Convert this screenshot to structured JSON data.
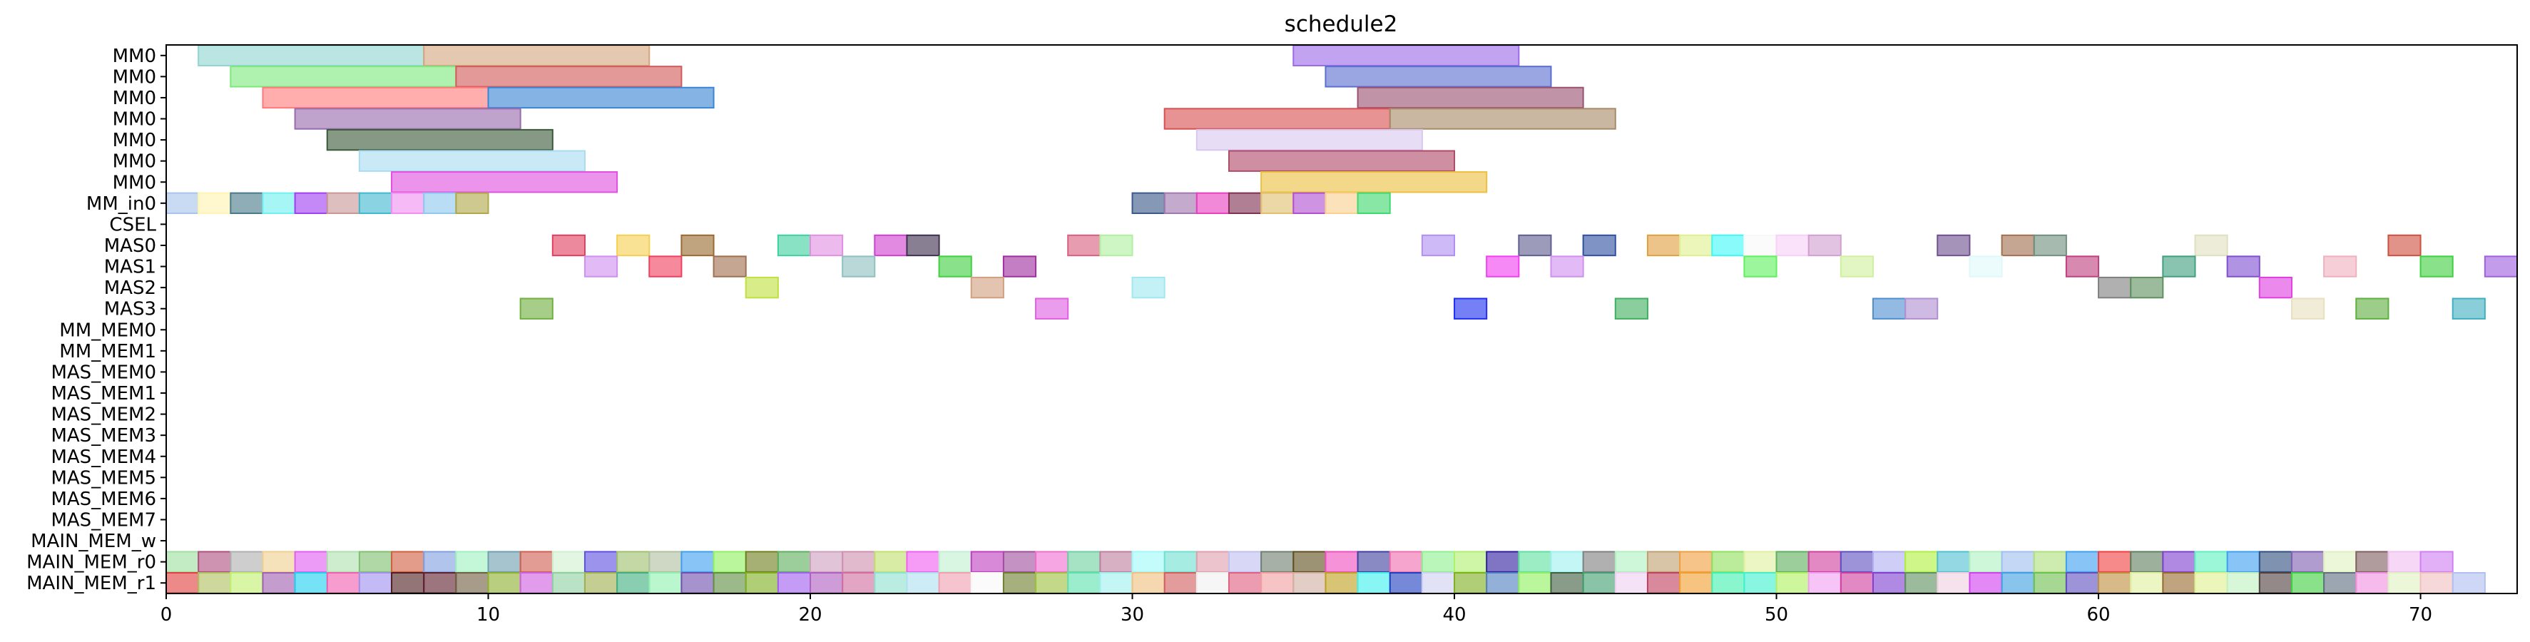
{
  "chart_data": {
    "type": "gantt",
    "title": "schedule2",
    "xlabel": "",
    "ylabel": "",
    "xlim": [
      0,
      73
    ],
    "xticks": [
      0,
      10,
      20,
      30,
      40,
      50,
      60,
      70
    ],
    "grid": false,
    "rows": [
      "MM0",
      "MM0",
      "MM0",
      "MM0",
      "MM0",
      "MM0",
      "MM0",
      "MM_in0",
      "CSEL",
      "MAS0",
      "MAS1",
      "MAS2",
      "MAS3",
      "MM_MEM0",
      "MM_MEM1",
      "MAS_MEM0",
      "MAS_MEM1",
      "MAS_MEM2",
      "MAS_MEM3",
      "MAS_MEM4",
      "MAS_MEM5",
      "MAS_MEM6",
      "MAS_MEM7",
      "MAIN_MEM_w",
      "MAIN_MEM_r0",
      "MAIN_MEM_r1"
    ],
    "bars": [
      [
        0,
        1,
        8,
        "#8fd5d0"
      ],
      [
        0,
        8,
        15,
        "#d4a67e"
      ],
      [
        0,
        35,
        42,
        "#9b6be8"
      ],
      [
        1,
        2,
        9,
        "#7ee87e"
      ],
      [
        1,
        9,
        16,
        "#d45a5a"
      ],
      [
        1,
        36,
        43,
        "#5a6fd0"
      ],
      [
        2,
        3,
        10,
        "#ff7a7a"
      ],
      [
        2,
        10,
        17,
        "#3a86d4"
      ],
      [
        2,
        37,
        44,
        "#9a5070"
      ],
      [
        3,
        4,
        11,
        "#9a6aae"
      ],
      [
        3,
        31,
        38,
        "#d85050"
      ],
      [
        3,
        38,
        45,
        "#a88a68"
      ],
      [
        4,
        5,
        12,
        "#3a5a3a"
      ],
      [
        4,
        32,
        39,
        "#d8c8ee"
      ],
      [
        5,
        6,
        13,
        "#a8dcf2"
      ],
      [
        5,
        33,
        40,
        "#b04a6a"
      ],
      [
        6,
        7,
        14,
        "#e050e0"
      ],
      [
        6,
        34,
        41,
        "#ecc040"
      ],
      [
        7,
        0,
        1,
        "#a8c4ec"
      ],
      [
        7,
        1,
        2,
        "#fff4b0"
      ],
      [
        7,
        2,
        3,
        "#4a7a8a"
      ],
      [
        7,
        3,
        4,
        "#70f0f0"
      ],
      [
        7,
        4,
        5,
        "#a040f0"
      ],
      [
        7,
        5,
        6,
        "#c89898"
      ],
      [
        7,
        6,
        7,
        "#40b8d0"
      ],
      [
        7,
        7,
        8,
        "#f090f0"
      ],
      [
        7,
        8,
        9,
        "#90c8f0"
      ],
      [
        7,
        9,
        10,
        "#b0a848"
      ],
      [
        7,
        30,
        31,
        "#3a5a8a"
      ],
      [
        7,
        31,
        32,
        "#a078b0"
      ],
      [
        7,
        32,
        33,
        "#e840c0"
      ],
      [
        7,
        33,
        34,
        "#803050"
      ],
      [
        7,
        34,
        35,
        "#e0c070"
      ],
      [
        7,
        35,
        36,
        "#b050d0"
      ],
      [
        7,
        36,
        37,
        "#fad090"
      ],
      [
        7,
        37,
        38,
        "#40d870"
      ],
      [
        9,
        12,
        13,
        "#e04060"
      ],
      [
        9,
        14,
        15,
        "#f6d050"
      ],
      [
        9,
        16,
        17,
        "#9a6a30"
      ],
      [
        9,
        19,
        20,
        "#40d0a0"
      ],
      [
        9,
        20,
        21,
        "#e090e0"
      ],
      [
        9,
        22,
        23,
        "#d040d0"
      ],
      [
        9,
        23,
        24,
        "#403050"
      ],
      [
        9,
        28,
        29,
        "#d86080"
      ],
      [
        9,
        29,
        30,
        "#b0f0a0"
      ],
      [
        9,
        39,
        40,
        "#b090f0"
      ],
      [
        9,
        42,
        43,
        "#606090"
      ],
      [
        9,
        44,
        45,
        "#3050a0"
      ],
      [
        9,
        46,
        47,
        "#e0a040"
      ],
      [
        9,
        47,
        48,
        "#e0f090"
      ],
      [
        9,
        48,
        49,
        "#40f8f8"
      ],
      [
        9,
        49,
        50,
        "#f8f8f8"
      ],
      [
        9,
        50,
        51,
        "#f8d0f8"
      ],
      [
        9,
        51,
        52,
        "#d0a0d0"
      ],
      [
        9,
        55,
        56,
        "#705090"
      ],
      [
        9,
        57,
        58,
        "#a07050"
      ],
      [
        9,
        58,
        59,
        "#709080"
      ],
      [
        9,
        63,
        64,
        "#e0e0c0"
      ],
      [
        9,
        69,
        70,
        "#d05040"
      ],
      [
        10,
        13,
        14,
        "#d090f0"
      ],
      [
        10,
        15,
        16,
        "#f04060"
      ],
      [
        10,
        17,
        18,
        "#a07050"
      ],
      [
        10,
        21,
        22,
        "#90c0c0"
      ],
      [
        10,
        24,
        25,
        "#40d040"
      ],
      [
        10,
        26,
        27,
        "#a030a0"
      ],
      [
        10,
        41,
        42,
        "#f040f0"
      ],
      [
        10,
        43,
        44,
        "#d090f0"
      ],
      [
        10,
        49,
        50,
        "#60f060"
      ],
      [
        10,
        52,
        53,
        "#d0f0a0"
      ],
      [
        10,
        56,
        57,
        "#e0f8f8"
      ],
      [
        10,
        59,
        60,
        "#c04080"
      ],
      [
        10,
        62,
        63,
        "#40a080"
      ],
      [
        10,
        64,
        65,
        "#8050d0"
      ],
      [
        10,
        67,
        68,
        "#f0b0c0"
      ],
      [
        10,
        70,
        71,
        "#40d040"
      ],
      [
        10,
        72,
        73,
        "#a060e0"
      ],
      [
        11,
        18,
        19,
        "#c0e040"
      ],
      [
        11,
        25,
        26,
        "#d0a080"
      ],
      [
        11,
        30,
        31,
        "#a0e8f0"
      ],
      [
        11,
        60,
        61,
        "#808080"
      ],
      [
        11,
        61,
        62,
        "#609060"
      ],
      [
        11,
        65,
        66,
        "#e040e0"
      ],
      [
        12,
        11,
        12,
        "#70b040"
      ],
      [
        12,
        27,
        28,
        "#e060e0"
      ],
      [
        12,
        40,
        41,
        "#2030f0"
      ],
      [
        12,
        45,
        46,
        "#40b060"
      ],
      [
        12,
        53,
        54,
        "#5090d0"
      ],
      [
        12,
        54,
        55,
        "#b090d0"
      ],
      [
        12,
        66,
        67,
        "#e8e0c0"
      ],
      [
        12,
        68,
        69,
        "#60b040"
      ],
      [
        12,
        71,
        72,
        "#40b0c0"
      ],
      [
        24,
        0,
        1,
        "#a0e0a0"
      ],
      [
        24,
        1,
        2,
        "#b05080"
      ],
      [
        24,
        2,
        3,
        "#b0b0b0"
      ],
      [
        24,
        3,
        4,
        "#f0d090"
      ],
      [
        24,
        4,
        5,
        "#e060f0"
      ],
      [
        24,
        5,
        6,
        "#b0e0b0"
      ],
      [
        24,
        6,
        7,
        "#80c070"
      ],
      [
        24,
        7,
        8,
        "#d06040"
      ],
      [
        24,
        8,
        9,
        "#80a0e0"
      ],
      [
        24,
        9,
        10,
        "#a0f0c0"
      ],
      [
        24,
        10,
        11,
        "#70a0b0"
      ],
      [
        24,
        11,
        12,
        "#d06050"
      ],
      [
        24,
        12,
        13,
        "#d0f0d0"
      ],
      [
        24,
        13,
        14,
        "#6050e0"
      ],
      [
        24,
        14,
        15,
        "#a0c070"
      ],
      [
        24,
        15,
        16,
        "#b0c0a0"
      ],
      [
        24,
        16,
        17,
        "#40a0f0"
      ],
      [
        24,
        17,
        18,
        "#90f060"
      ],
      [
        24,
        18,
        19,
        "#708020"
      ],
      [
        24,
        19,
        20,
        "#60b060"
      ],
      [
        24,
        20,
        21,
        "#d0a0c0"
      ],
      [
        24,
        21,
        22,
        "#d090b0"
      ],
      [
        24,
        22,
        23,
        "#c0e070"
      ],
      [
        24,
        23,
        24,
        "#f060f0"
      ],
      [
        24,
        24,
        25,
        "#c0f0d0"
      ],
      [
        24,
        25,
        26,
        "#c040c0"
      ],
      [
        24,
        26,
        27,
        "#a050a0"
      ],
      [
        24,
        27,
        28,
        "#f070d0"
      ],
      [
        24,
        28,
        29,
        "#70d0a0"
      ],
      [
        24,
        29,
        30,
        "#c080a0"
      ],
      [
        24,
        30,
        31,
        "#a0f8f8"
      ],
      [
        24,
        31,
        32,
        "#70e0d0"
      ],
      [
        24,
        32,
        33,
        "#e0a0b0"
      ],
      [
        24,
        33,
        34,
        "#c0c0f0"
      ],
      [
        24,
        34,
        35,
        "#708070"
      ],
      [
        24,
        35,
        36,
        "#605020"
      ],
      [
        24,
        36,
        37,
        "#f050c0"
      ],
      [
        24,
        37,
        38,
        "#4040a0"
      ],
      [
        24,
        38,
        39,
        "#f070b0"
      ],
      [
        24,
        39,
        40,
        "#90f090"
      ],
      [
        24,
        40,
        41,
        "#b0f070"
      ],
      [
        24,
        41,
        42,
        "#3020a0"
      ],
      [
        24,
        42,
        43,
        "#60e0a0"
      ],
      [
        24,
        43,
        44,
        "#a0f0f0"
      ],
      [
        24,
        44,
        45,
        "#808080"
      ],
      [
        24,
        45,
        46,
        "#b0f0c0"
      ],
      [
        24,
        46,
        47,
        "#c0a070"
      ],
      [
        24,
        47,
        48,
        "#f0a040"
      ],
      [
        24,
        48,
        49,
        "#90e060"
      ],
      [
        24,
        49,
        50,
        "#e0f0a0"
      ],
      [
        24,
        50,
        51,
        "#60b060"
      ],
      [
        24,
        51,
        52,
        "#d040a0"
      ],
      [
        24,
        52,
        53,
        "#6050c0"
      ],
      [
        24,
        53,
        54,
        "#b0b0f0"
      ],
      [
        24,
        54,
        55,
        "#b0f040"
      ],
      [
        24,
        55,
        56,
        "#50c0d0"
      ],
      [
        24,
        56,
        57,
        "#b0f0c0"
      ],
      [
        24,
        57,
        58,
        "#a0c0f0"
      ],
      [
        24,
        58,
        59,
        "#b0e080"
      ],
      [
        24,
        59,
        60,
        "#40a0f0"
      ],
      [
        24,
        60,
        61,
        "#f04040"
      ],
      [
        24,
        61,
        62,
        "#608060"
      ],
      [
        24,
        62,
        63,
        "#8040d0"
      ],
      [
        24,
        63,
        64,
        "#60f0c0"
      ],
      [
        24,
        64,
        65,
        "#40a0f0"
      ],
      [
        24,
        65,
        66,
        "#305080"
      ],
      [
        24,
        66,
        67,
        "#8060b0"
      ],
      [
        24,
        67,
        68,
        "#e0f0c0"
      ],
      [
        24,
        68,
        69,
        "#806060"
      ],
      [
        24,
        69,
        70,
        "#f0c0f0"
      ],
      [
        24,
        70,
        71,
        "#d080f0"
      ],
      [
        25,
        0,
        1,
        "#e04040"
      ],
      [
        25,
        1,
        2,
        "#b0c060"
      ],
      [
        25,
        2,
        3,
        "#c0f070"
      ],
      [
        25,
        3,
        4,
        "#a060b0"
      ],
      [
        25,
        4,
        5,
        "#20d0f0"
      ],
      [
        25,
        5,
        6,
        "#f060b0"
      ],
      [
        25,
        6,
        7,
        "#a090f0"
      ],
      [
        25,
        7,
        8,
        "#502020"
      ],
      [
        25,
        8,
        9,
        "#602030"
      ],
      [
        25,
        9,
        10,
        "#706040"
      ],
      [
        25,
        10,
        11,
        "#90b030"
      ],
      [
        25,
        11,
        12,
        "#d060e0"
      ],
      [
        25,
        12,
        13,
        "#90d0a0"
      ],
      [
        25,
        13,
        14,
        "#a0b050"
      ],
      [
        25,
        14,
        15,
        "#40b080"
      ],
      [
        25,
        15,
        16,
        "#90f0b0"
      ],
      [
        25,
        16,
        17,
        "#7050b0"
      ],
      [
        25,
        17,
        18,
        "#609040"
      ],
      [
        25,
        18,
        19,
        "#80b020"
      ],
      [
        25,
        19,
        20,
        "#a060f0"
      ],
      [
        25,
        20,
        21,
        "#b060c0"
      ],
      [
        25,
        21,
        22,
        "#d070a0"
      ],
      [
        25,
        22,
        23,
        "#90e0d0"
      ],
      [
        25,
        23,
        24,
        "#b0e0f0"
      ],
      [
        25,
        24,
        25,
        "#f0a0b0"
      ],
      [
        25,
        25,
        26,
        "#f8f8f8"
      ],
      [
        25,
        26,
        27,
        "#708030"
      ],
      [
        25,
        27,
        28,
        "#a0c040"
      ],
      [
        25,
        28,
        29,
        "#60e0b0"
      ],
      [
        25,
        29,
        30,
        "#a0f0f0"
      ],
      [
        25,
        30,
        31,
        "#f0c080"
      ],
      [
        25,
        31,
        32,
        "#d06060"
      ],
      [
        25,
        32,
        33,
        "#f0f0f0"
      ],
      [
        25,
        33,
        34,
        "#e06080"
      ],
      [
        25,
        34,
        35,
        "#f0a0a0"
      ],
      [
        25,
        35,
        36,
        "#d0b0a0"
      ],
      [
        25,
        36,
        37,
        "#c0a020"
      ],
      [
        25,
        37,
        38,
        "#40f0f0"
      ],
      [
        25,
        38,
        39,
        "#2040c0"
      ],
      [
        25,
        39,
        40,
        "#d0d0f0"
      ],
      [
        25,
        40,
        41,
        "#80b020"
      ],
      [
        25,
        41,
        42,
        "#5080c0"
      ],
      [
        25,
        42,
        43,
        "#90f060"
      ],
      [
        25,
        43,
        44,
        "#406040"
      ],
      [
        25,
        44,
        45,
        "#40a070"
      ],
      [
        25,
        45,
        46,
        "#f0d0f0"
      ],
      [
        25,
        46,
        47,
        "#c04060"
      ],
      [
        25,
        47,
        48,
        "#f0a030"
      ],
      [
        25,
        48,
        49,
        "#40f0b0"
      ],
      [
        25,
        49,
        50,
        "#40f0d0"
      ],
      [
        25,
        50,
        51,
        "#b0f060"
      ],
      [
        25,
        51,
        52,
        "#f0a0f0"
      ],
      [
        25,
        52,
        53,
        "#d040a0"
      ],
      [
        25,
        53,
        54,
        "#8040d0"
      ],
      [
        25,
        54,
        55,
        "#609060"
      ],
      [
        25,
        55,
        56,
        "#f0d0e0"
      ],
      [
        25,
        56,
        57,
        "#d040f0"
      ],
      [
        25,
        57,
        58,
        "#40a0e0"
      ],
      [
        25,
        58,
        59,
        "#70c050"
      ],
      [
        25,
        59,
        60,
        "#6050c0"
      ],
      [
        25,
        60,
        61,
        "#c09040"
      ],
      [
        25,
        61,
        62,
        "#e0f0a0"
      ],
      [
        25,
        62,
        63,
        "#9a6a30"
      ],
      [
        25,
        63,
        64,
        "#e0f090"
      ],
      [
        25,
        64,
        65,
        "#c0f0c0"
      ],
      [
        25,
        65,
        66,
        "#504040"
      ],
      [
        25,
        66,
        67,
        "#40d040"
      ],
      [
        25,
        67,
        68,
        "#607080"
      ],
      [
        25,
        68,
        69,
        "#f090e0"
      ],
      [
        25,
        69,
        70,
        "#e0f0c0"
      ],
      [
        25,
        70,
        71,
        "#f0c0c0"
      ],
      [
        25,
        71,
        72,
        "#b0c0f0"
      ]
    ]
  }
}
